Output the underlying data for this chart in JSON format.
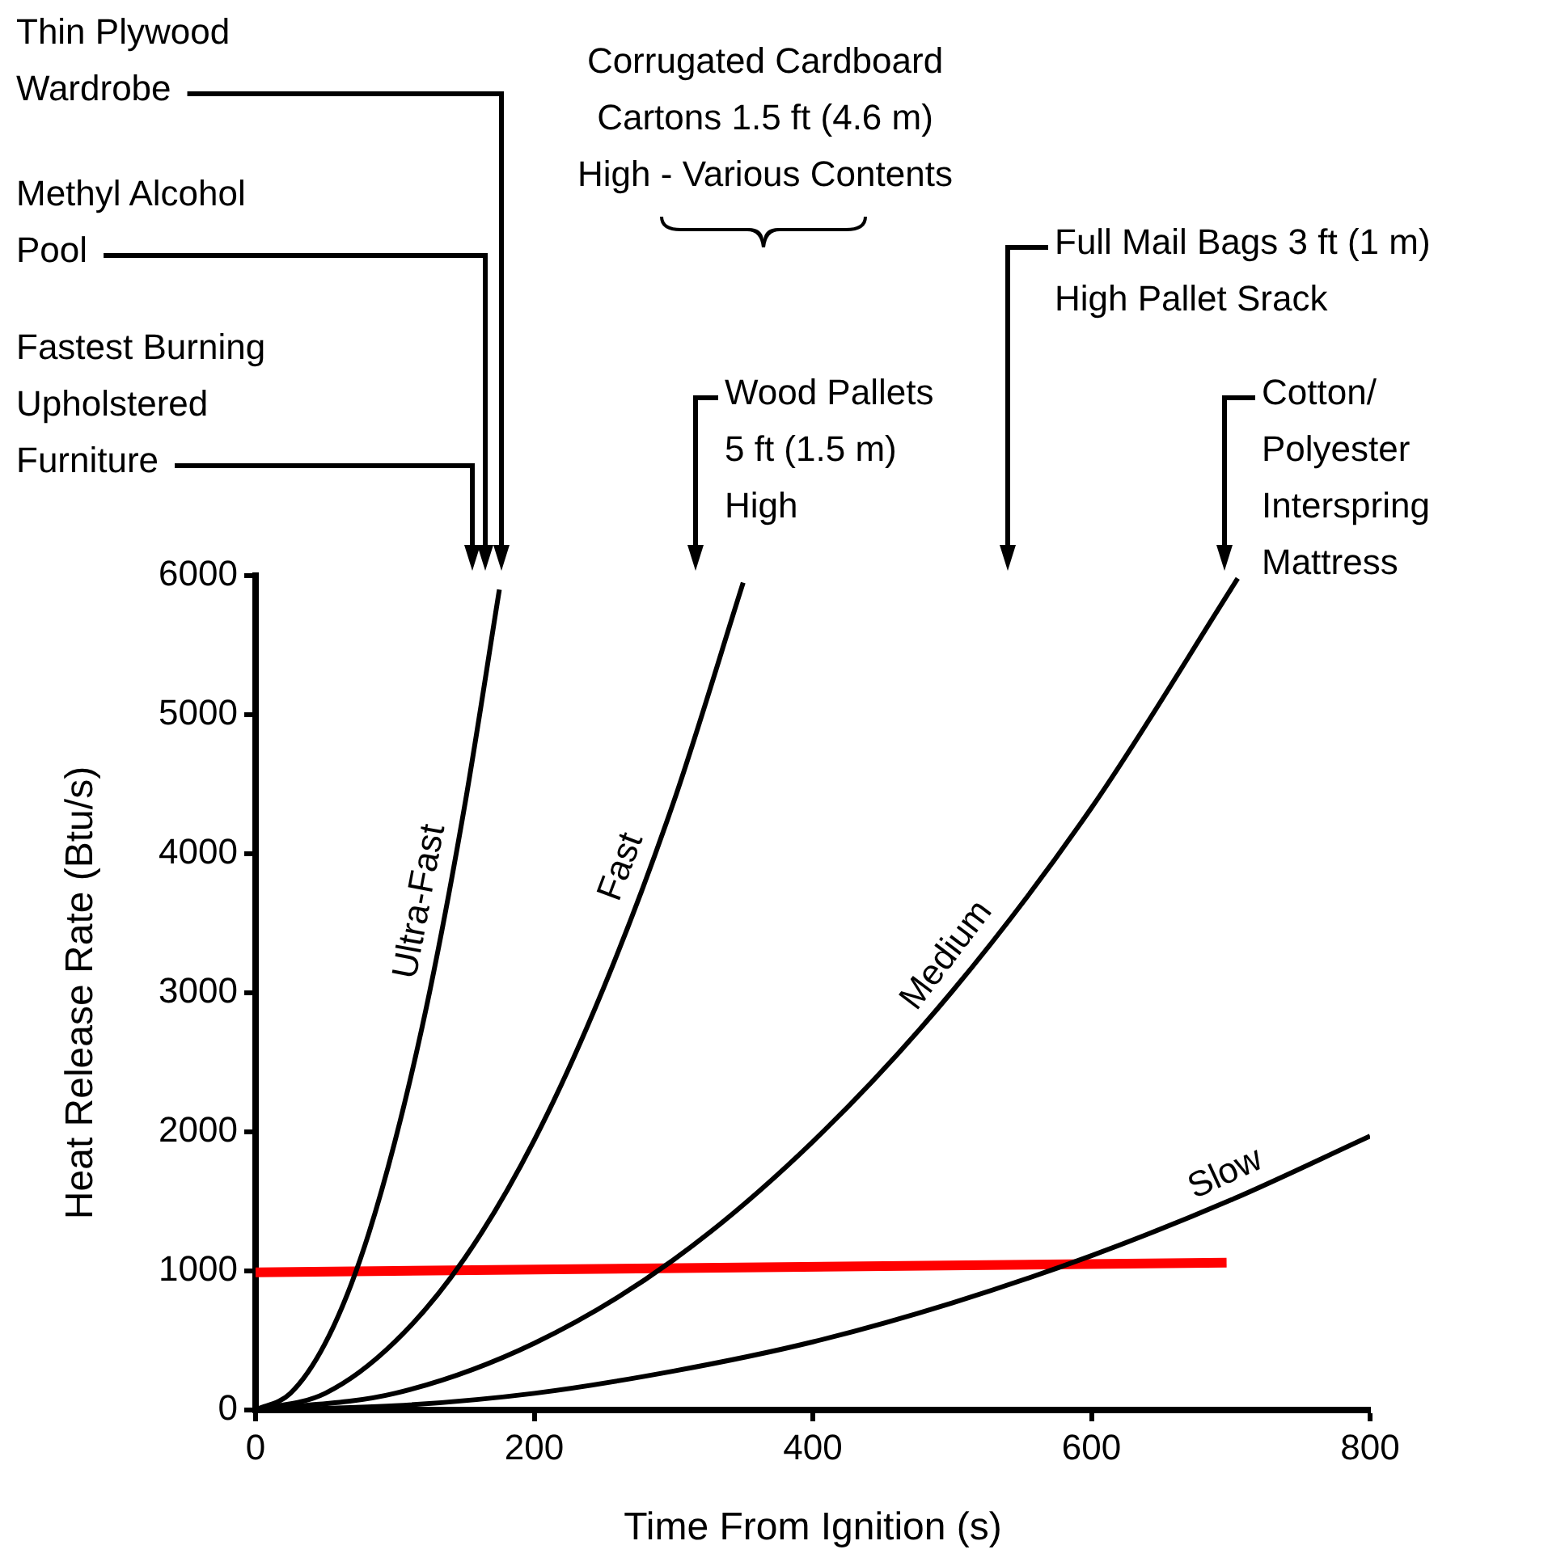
{
  "chart_data": {
    "type": "line",
    "xlabel": "Time From Ignition (s)",
    "ylabel": "Heat Release Rate (Btu/s)",
    "xlim": [
      0,
      800
    ],
    "ylim": [
      0,
      6000
    ],
    "xticks": [
      0,
      200,
      400,
      600,
      800
    ],
    "yticks": [
      0,
      1000,
      2000,
      3000,
      4000,
      5000,
      6000
    ],
    "grid": false,
    "legend": false,
    "marker": "none",
    "line_style": "solid",
    "series": [
      {
        "name": "Ultra-Fast",
        "color": "#000000",
        "x": [
          0,
          25,
          50,
          75,
          100,
          125,
          150,
          175
        ],
        "values": [
          0,
          120,
          480,
          1080,
          1930,
          3010,
          4340,
          5900
        ]
      },
      {
        "name": "Fast",
        "color": "#000000",
        "x": [
          0,
          50,
          100,
          150,
          200,
          250,
          300,
          350
        ],
        "values": [
          0,
          120,
          490,
          1090,
          1940,
          3040,
          4370,
          5950
        ]
      },
      {
        "name": "Medium",
        "color": "#000000",
        "x": [
          0,
          100,
          200,
          300,
          400,
          500,
          600,
          705
        ],
        "values": [
          0,
          120,
          480,
          1080,
          1930,
          3010,
          4330,
          5980
        ]
      },
      {
        "name": "Slow",
        "color": "#000000",
        "x": [
          0,
          100,
          200,
          300,
          400,
          500,
          600,
          700,
          800
        ],
        "values": [
          0,
          30,
          120,
          280,
          490,
          770,
          1110,
          1510,
          1970
        ]
      },
      {
        "color": "#ff0000",
        "x": [
          0,
          697
        ],
        "values": [
          990,
          1060
        ]
      }
    ],
    "annotations": [
      "Thin Plywood Wardrobe",
      "Methyl Alcohol Pool",
      "Fastest Burning Upholstered Furniture",
      "Corrugated Cardboard Cartons 1.5 ft (4.6 m) High - Various Contents",
      "Wood Pallets 5 ft (1.5 m) High",
      "Full Mail Bags 3 ft (1 m) High Pallet Srack",
      "Cotton/ Polyester Interspring Mattress"
    ]
  }
}
